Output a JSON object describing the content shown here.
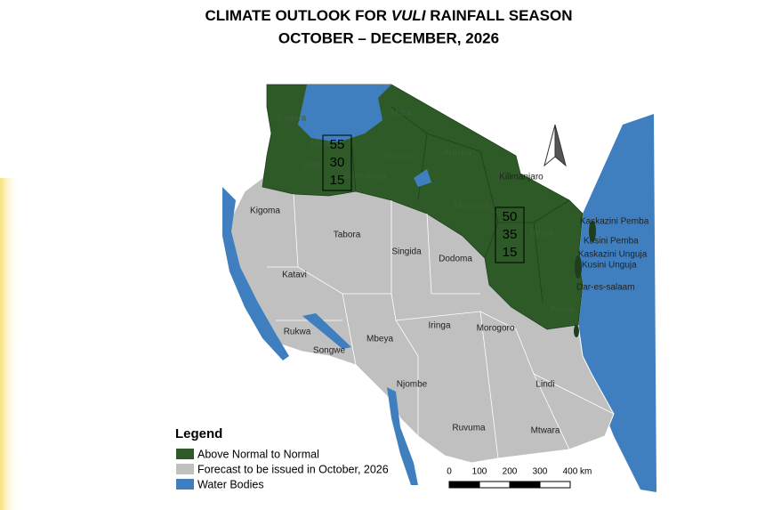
{
  "header": {
    "title_before": "CLIMATE OUTLOOK FOR",
    "title_emphasis": "VULI",
    "title_after": "RAINFALL SEASON",
    "subtitle": "OCTOBER – DECEMBER, 2026"
  },
  "regions": [
    {
      "label": "Kagera",
      "faint": true
    },
    {
      "label": "Mara",
      "faint": true
    },
    {
      "label": "Mwanza",
      "faint": true
    },
    {
      "label": "Simiyu",
      "faint": true
    },
    {
      "label": "Geita",
      "faint": true
    },
    {
      "label": "Shinyanga",
      "faint": true
    },
    {
      "label": "Arusha",
      "faint": true
    },
    {
      "label": "Manyara",
      "faint": true
    },
    {
      "label": "Tanga",
      "faint": true
    },
    {
      "label": "Pwani",
      "faint": true
    },
    {
      "label": "Kilimanjaro",
      "faint": false
    },
    {
      "label": "Kaskazini Pemba",
      "faint": false
    },
    {
      "label": "Kusini Pemba",
      "faint": false
    },
    {
      "label": "Kaskazini Unguja",
      "faint": false
    },
    {
      "label": "Kusini Unguja",
      "faint": false
    },
    {
      "label": "Dar-es-salaam",
      "faint": false
    },
    {
      "label": "Kigoma",
      "faint": false
    },
    {
      "label": "Tabora",
      "faint": false
    },
    {
      "label": "Singida",
      "faint": false
    },
    {
      "label": "Dodoma",
      "faint": false
    },
    {
      "label": "Katavi",
      "faint": false
    },
    {
      "label": "Rukwa",
      "faint": false
    },
    {
      "label": "Songwe",
      "faint": false
    },
    {
      "label": "Mbeya",
      "faint": false
    },
    {
      "label": "Iringa",
      "faint": false
    },
    {
      "label": "Morogoro",
      "faint": false
    },
    {
      "label": "Njombe",
      "faint": false
    },
    {
      "label": "Lindi",
      "faint": false
    },
    {
      "label": "Ruvuma",
      "faint": false
    },
    {
      "label": "Mtwara",
      "faint": false
    }
  ],
  "probability_boxes": [
    [
      55,
      30,
      15
    ],
    [
      50,
      35,
      15
    ]
  ],
  "legend": {
    "title": "Legend",
    "items": [
      {
        "label": "Above Normal to Normal",
        "color": "#2d5a27"
      },
      {
        "label": "Forecast to be issued in October, 2026",
        "color": "#c0c0c0"
      },
      {
        "label": "Water Bodies",
        "color": "#3f7fc0"
      }
    ]
  },
  "scale_bar": {
    "labels": [
      "0",
      "100",
      "200",
      "300",
      "400 km"
    ]
  }
}
